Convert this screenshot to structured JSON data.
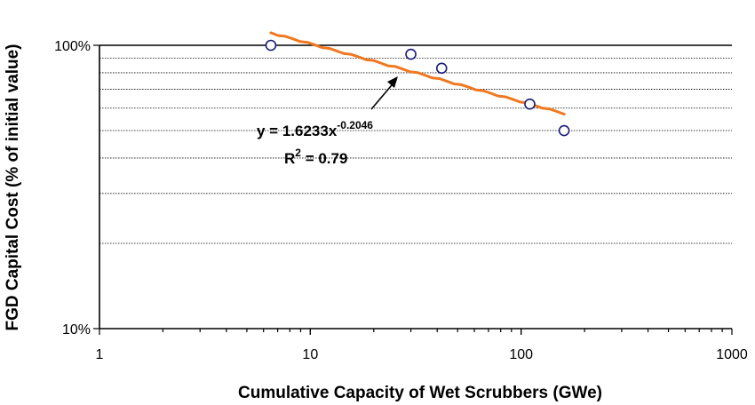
{
  "chart_data": {
    "type": "scatter",
    "title": "",
    "xlabel": "Cumulative Capacity of Wet Scrubbers (GWe)",
    "ylabel": "FGD Capital Cost (% of initial value)",
    "x_scale": "log",
    "y_scale": "log",
    "xlim": [
      1,
      1000
    ],
    "ylim": [
      10,
      100
    ],
    "x_ticks": [
      1,
      10,
      100,
      1000
    ],
    "x_tick_labels": [
      "1",
      "10",
      "100",
      "1000"
    ],
    "y_ticks": [
      10,
      100
    ],
    "y_tick_labels": [
      "10%",
      "100%"
    ],
    "y_minor_gridlines": [
      20,
      30,
      40,
      50,
      60,
      70,
      80,
      90
    ],
    "grid": "horizontal dotted minor gridlines",
    "points": {
      "x": [
        6.5,
        30,
        42,
        110,
        160
      ],
      "y": [
        100,
        93,
        83,
        62,
        50
      ],
      "marker": "open circle",
      "color": "#1a1a7a"
    },
    "trendline": {
      "type": "power",
      "coef": 1.6233,
      "exponent": -0.2046,
      "x_range": [
        6.5,
        160
      ],
      "color": "#f07820"
    },
    "annotation": {
      "equation_prefix": "y = 1.6233x",
      "equation_exponent": "-0.2046",
      "r2_prefix": "R",
      "r2_sup": "2",
      "r2_value": " = 0.79"
    }
  }
}
